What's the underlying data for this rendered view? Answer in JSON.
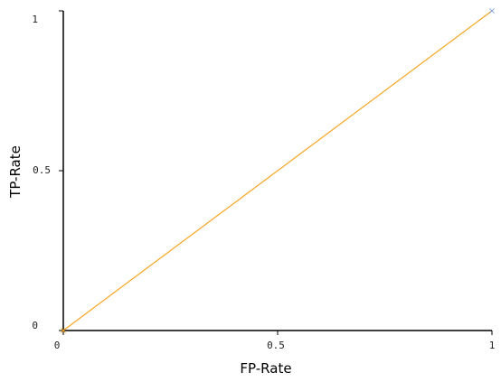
{
  "chart_data": {
    "type": "line",
    "xlabel": "FP-Rate",
    "ylabel": "TP-Rate",
    "xlim": [
      0,
      1
    ],
    "ylim": [
      0,
      1
    ],
    "x_ticks": [
      "0",
      "0.5",
      "1"
    ],
    "y_ticks": [
      "0",
      "0.5",
      "1"
    ],
    "grid": false,
    "series": [
      {
        "color": "#f5a623",
        "x": [
          0,
          1
        ],
        "y": [
          0,
          1
        ]
      }
    ],
    "markers": [
      {
        "x": 0,
        "y": 0,
        "color": "#f5a623",
        "symbol": "x"
      },
      {
        "x": 1,
        "y": 1,
        "color": "#8aa8d8",
        "symbol": "x"
      }
    ]
  }
}
